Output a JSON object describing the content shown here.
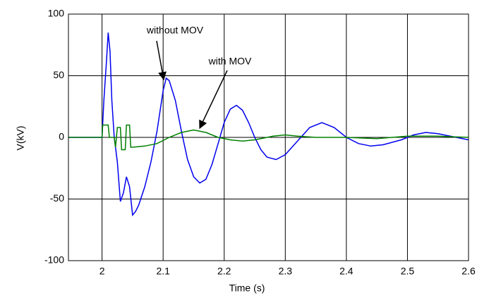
{
  "chart_data": {
    "type": "line",
    "xlabel": "Time (s)",
    "ylabel": "V(kV)",
    "xlim": [
      1.945,
      2.6
    ],
    "ylim": [
      -100,
      100
    ],
    "xticks": [
      2,
      2.1,
      2.2,
      2.3,
      2.4,
      2.5,
      2.6
    ],
    "yticks": [
      -100,
      -50,
      0,
      50,
      100
    ],
    "grid": true,
    "annotations": [
      "without MOV",
      "with MOV"
    ],
    "series": [
      {
        "name": "without MOV",
        "color": "#0000ee",
        "x": [
          1.945,
          2.0,
          2.003,
          2.007,
          2.01,
          2.013,
          2.016,
          2.02,
          2.025,
          2.03,
          2.035,
          2.04,
          2.045,
          2.05,
          2.055,
          2.06,
          2.07,
          2.08,
          2.09,
          2.1,
          2.105,
          2.11,
          2.12,
          2.13,
          2.14,
          2.15,
          2.16,
          2.17,
          2.18,
          2.19,
          2.2,
          2.21,
          2.22,
          2.23,
          2.24,
          2.25,
          2.26,
          2.27,
          2.285,
          2.3,
          2.32,
          2.34,
          2.36,
          2.38,
          2.4,
          2.42,
          2.44,
          2.46,
          2.49,
          2.51,
          2.53,
          2.55,
          2.58,
          2.6
        ],
        "values": [
          0,
          0,
          30,
          60,
          85,
          70,
          30,
          0,
          -20,
          -52,
          -45,
          -32,
          -40,
          -63,
          -60,
          -55,
          -40,
          -20,
          5,
          38,
          48,
          46,
          30,
          5,
          -18,
          -32,
          -37,
          -34,
          -22,
          -5,
          12,
          23,
          26,
          22,
          12,
          0,
          -10,
          -16,
          -18,
          -14,
          -3,
          8,
          12,
          8,
          0,
          -5,
          -7,
          -6,
          -2,
          2,
          4,
          3,
          0,
          -2
        ]
      },
      {
        "name": "with MOV",
        "color": "#008000",
        "x": [
          1.945,
          2.0,
          2.001,
          2.01,
          2.012,
          2.02,
          2.022,
          2.025,
          2.03,
          2.032,
          2.038,
          2.04,
          2.045,
          2.047,
          2.05,
          2.07,
          2.09,
          2.11,
          2.13,
          2.15,
          2.17,
          2.19,
          2.21,
          2.23,
          2.25,
          2.28,
          2.3,
          2.32,
          2.35,
          2.4,
          2.45,
          2.5,
          2.55,
          2.6
        ],
        "values": [
          0,
          0,
          10,
          10,
          0,
          0,
          -8,
          8,
          8,
          -10,
          -10,
          10,
          10,
          -8,
          -8,
          -7,
          -5,
          0,
          4,
          6,
          4,
          0,
          -2,
          -3,
          -2,
          1,
          2,
          1,
          0,
          0,
          -1,
          1,
          1,
          0
        ]
      }
    ]
  }
}
